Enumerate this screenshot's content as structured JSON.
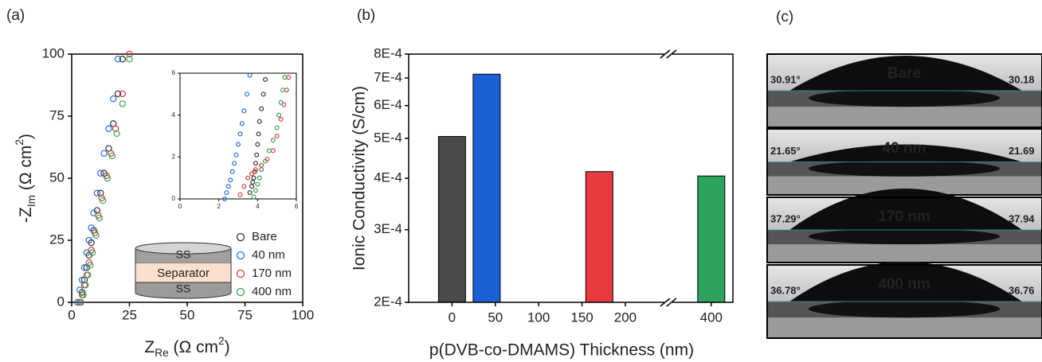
{
  "chart_data": [
    {
      "type": "scatter",
      "panel_label": "(a)",
      "x_label": [
        "Z",
        "Re",
        " (Ω cm",
        "2",
        ")"
      ],
      "y_label": [
        "-Z",
        "Im",
        " (Ω cm",
        "2",
        ")"
      ],
      "xlim": [
        0,
        100
      ],
      "ylim": [
        0,
        100
      ],
      "xticks": [
        0,
        25,
        50,
        75,
        100
      ],
      "yticks": [
        0,
        25,
        50,
        75,
        100
      ],
      "series": [
        {
          "name": "Bare",
          "color": "#333333",
          "x": [
            3.5,
            4.5,
            5.5,
            6.5,
            7.5,
            8.5,
            9.5,
            11,
            12.5,
            14,
            16,
            18,
            20,
            22
          ],
          "y": [
            0,
            4,
            9,
            14,
            19,
            24,
            29,
            37,
            44,
            52,
            62,
            72,
            84,
            98
          ]
        },
        {
          "name": "40 nm",
          "color": "#1f6fd6",
          "x": [
            2.5,
            3.5,
            4.5,
            5.5,
            6.5,
            7.5,
            8.5,
            9.5,
            11,
            12.5,
            14,
            16,
            18,
            20
          ],
          "y": [
            0,
            5,
            9,
            14,
            20,
            25,
            30,
            36,
            44,
            52,
            60,
            70,
            82,
            98
          ]
        },
        {
          "name": "170 nm",
          "color": "#e23b3b",
          "x": [
            3.5,
            4.5,
            5.5,
            6.5,
            7.5,
            8.5,
            10,
            11.5,
            13,
            15,
            17,
            19,
            22,
            25
          ],
          "y": [
            0,
            3,
            7,
            11,
            16,
            21,
            28,
            35,
            42,
            51,
            60,
            70,
            84,
            100
          ]
        },
        {
          "name": "400 nm",
          "color": "#32a35a",
          "x": [
            4,
            5,
            6,
            7,
            8,
            9,
            10.5,
            12,
            13.5,
            15.5,
            17.5,
            19.5,
            22,
            25
          ],
          "y": [
            0,
            3,
            7,
            11,
            15,
            20,
            27,
            34,
            41,
            50,
            59,
            68,
            80,
            98
          ]
        }
      ],
      "inset": {
        "type": "scatter",
        "xlim": [
          0,
          6
        ],
        "ylim": [
          0,
          6
        ],
        "xticks": [
          0,
          2,
          4,
          6
        ],
        "yticks": [
          0,
          2,
          4,
          6
        ],
        "series": [
          {
            "color": "#333333",
            "x": [
              3.6,
              3.7,
              3.75,
              3.8,
              3.85,
              3.9,
              3.95,
              4.0,
              4.05,
              4.1,
              4.2,
              4.3,
              4.4
            ],
            "y": [
              0.3,
              0.6,
              0.8,
              1.0,
              1.3,
              1.7,
              2.1,
              2.6,
              3.1,
              3.7,
              4.3,
              5.0,
              5.7
            ]
          },
          {
            "color": "#1f6fd6",
            "x": [
              2.3,
              2.4,
              2.5,
              2.6,
              2.7,
              2.8,
              2.9,
              3.0,
              3.1,
              3.2,
              3.3,
              3.45,
              3.6
            ],
            "y": [
              0,
              0.3,
              0.6,
              0.9,
              1.3,
              1.7,
              2.1,
              2.6,
              3.1,
              3.6,
              4.2,
              5.0,
              5.9
            ]
          },
          {
            "color": "#e23b3b",
            "x": [
              3.1,
              3.3,
              3.5,
              3.7,
              3.9,
              4.2,
              4.5,
              4.8,
              5.0,
              5.2,
              5.35,
              5.5,
              5.6
            ],
            "y": [
              0.2,
              0.6,
              1.0,
              1.2,
              1.4,
              1.6,
              1.9,
              2.3,
              3.0,
              3.8,
              4.5,
              5.2,
              5.8
            ]
          },
          {
            "color": "#32a35a",
            "x": [
              3.8,
              3.9,
              4.0,
              4.1,
              4.2,
              4.4,
              4.6,
              4.8,
              5.0,
              5.1,
              5.2,
              5.3,
              5.4
            ],
            "y": [
              0.1,
              0.4,
              0.7,
              1.0,
              1.4,
              1.8,
              2.3,
              2.8,
              3.4,
              4.0,
              4.6,
              5.2,
              5.8
            ]
          }
        ]
      },
      "schematic": [
        "SS",
        "Separator",
        "SS"
      ]
    },
    {
      "type": "bar",
      "panel_label": "(b)",
      "x_label": "p(DVB-co-DMAMS) Thickness (nm)",
      "y_label": "Ionic Conductivity (S/cm)",
      "yscale": "log",
      "ylim": [
        0.0002,
        0.0008
      ],
      "yticks": [
        {
          "value": 0.0002,
          "label": "2E-4"
        },
        {
          "value": 0.0003,
          "label": "3E-4"
        },
        {
          "value": 0.0004,
          "label": "4E-4"
        },
        {
          "value": 0.0005,
          "label": "5E-4"
        },
        {
          "value": 0.0006,
          "label": "6E-4"
        },
        {
          "value": 0.0007,
          "label": "7E-4"
        },
        {
          "value": 0.0008,
          "label": "8E-4"
        }
      ],
      "xlim": [
        -50,
        425
      ],
      "axis_break": [
        222,
        378
      ],
      "xticks": [
        0,
        50,
        100,
        150,
        200,
        400
      ],
      "x": [
        0,
        40,
        170,
        400
      ],
      "values": [
        0.000505,
        0.000715,
        0.000415,
        0.000405
      ],
      "colors": [
        "#4a4a4a",
        "#1a5fd6",
        "#e83a3f",
        "#2ea35f"
      ]
    }
  ],
  "images": {
    "panel_label": "(c)",
    "frames": [
      {
        "label": "Bare",
        "left_angle": "30.91°",
        "right_angle": "30.18"
      },
      {
        "label": "40 nm",
        "left_angle": "21.65°",
        "right_angle": "21.69"
      },
      {
        "label": "170 nm",
        "left_angle": "37.29°",
        "right_angle": "37.94"
      },
      {
        "label": "400 nm",
        "left_angle": "36.78°",
        "right_angle": "36.76"
      }
    ]
  }
}
